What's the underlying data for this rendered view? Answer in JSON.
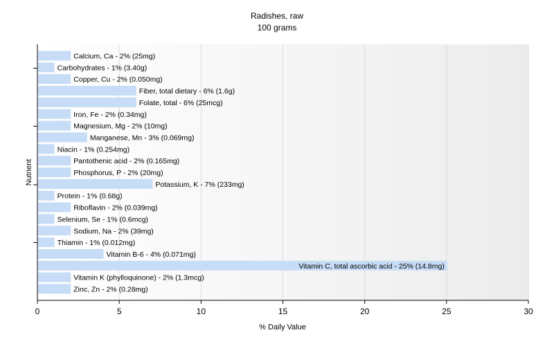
{
  "chart_data": {
    "type": "bar",
    "orientation": "horizontal",
    "title": "Radishes, raw",
    "subtitle": "100 grams",
    "xlabel": "% Daily Value",
    "ylabel": "Nutrient",
    "xlim": [
      0,
      30
    ],
    "xticks": [
      0,
      5,
      10,
      15,
      20,
      25,
      30
    ],
    "grid": true,
    "bar_color": "#c7dcf7",
    "categories": [
      "Calcium, Ca",
      "Carbohydrates",
      "Copper, Cu",
      "Fiber, total dietary",
      "Folate, total",
      "Iron, Fe",
      "Magnesium, Mg",
      "Manganese, Mn",
      "Niacin",
      "Pantothenic acid",
      "Phosphorus, P",
      "Potassium, K",
      "Protein",
      "Riboflavin",
      "Selenium, Se",
      "Sodium, Na",
      "Thiamin",
      "Vitamin B-6",
      "Vitamin C, total ascorbic acid",
      "Vitamin K (phylloquinone)",
      "Zinc, Zn"
    ],
    "values": [
      2,
      1,
      2,
      6,
      6,
      2,
      2,
      3,
      1,
      2,
      2,
      7,
      1,
      2,
      1,
      2,
      1,
      4,
      25,
      2,
      2
    ],
    "labels": [
      "Calcium, Ca - 2% (25mg)",
      "Carbohydrates - 1% (3.40g)",
      "Copper, Cu - 2% (0.050mg)",
      "Fiber, total dietary - 6% (1.6g)",
      "Folate, total - 6% (25mcg)",
      "Iron, Fe - 2% (0.34mg)",
      "Magnesium, Mg - 2% (10mg)",
      "Manganese, Mn - 3% (0.069mg)",
      "Niacin - 1% (0.254mg)",
      "Pantothenic acid - 2% (0.165mg)",
      "Phosphorus, P - 2% (20mg)",
      "Potassium, K - 7% (233mg)",
      "Protein - 1% (0.68g)",
      "Riboflavin - 2% (0.039mg)",
      "Selenium, Se - 1% (0.6mcg)",
      "Sodium, Na - 2% (39mg)",
      "Thiamin - 1% (0.012mg)",
      "Vitamin B-6 - 4% (0.071mg)",
      "Vitamin C, total ascorbic acid - 25% (14.8mg)",
      "Vitamin K (phylloquinone) - 2% (1.3mcg)",
      "Zinc, Zn - 2% (0.28mg)"
    ]
  }
}
